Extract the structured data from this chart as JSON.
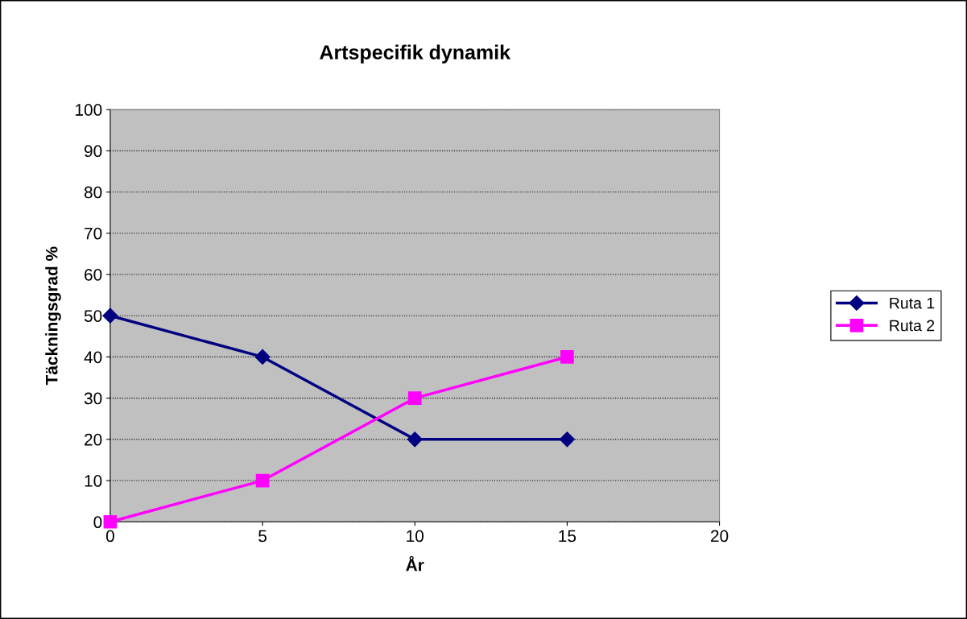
{
  "chart_data": {
    "type": "line",
    "title": "Artspecifik dynamik",
    "xlabel": "År",
    "ylabel": "Täckningsgrad %",
    "x": [
      0,
      5,
      10,
      15
    ],
    "series": [
      {
        "name": "Ruta 1",
        "color": "#000080",
        "marker": "diamond",
        "values": [
          50,
          40,
          20,
          20
        ]
      },
      {
        "name": "Ruta 2",
        "color": "#ff00ff",
        "marker": "square",
        "values": [
          0,
          10,
          30,
          40
        ]
      }
    ],
    "xlim": [
      0,
      20
    ],
    "xticks": [
      0,
      5,
      10,
      15,
      20
    ],
    "ylim": [
      0,
      100
    ],
    "yticks": [
      0,
      10,
      20,
      30,
      40,
      50,
      60,
      70,
      80,
      90,
      100
    ],
    "grid": "y",
    "legend": "right",
    "line_style": "solid"
  }
}
